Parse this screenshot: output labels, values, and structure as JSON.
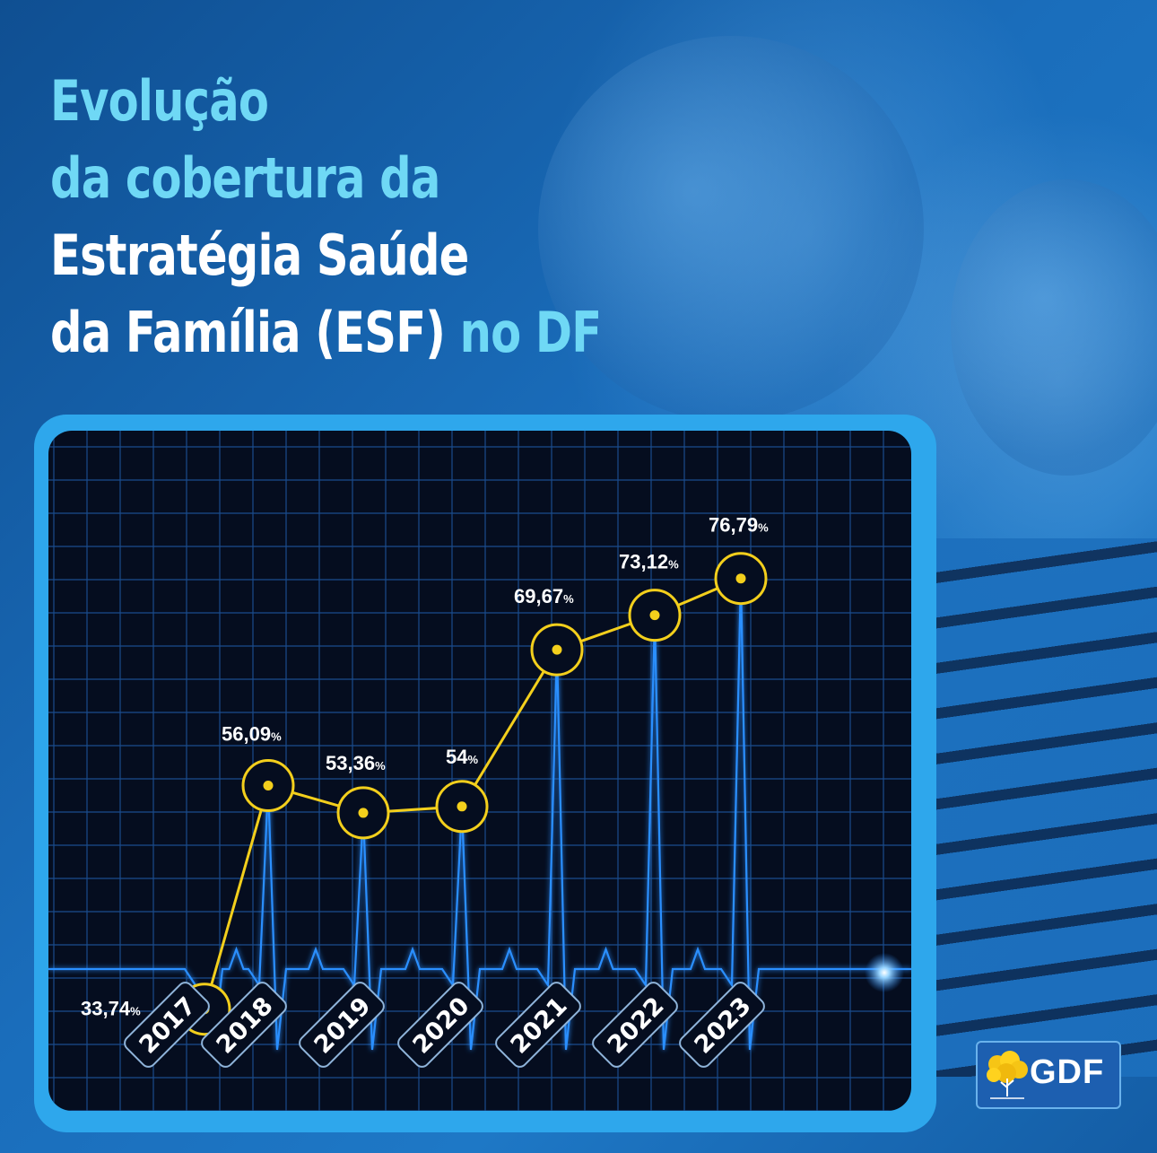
{
  "title": {
    "line1": "Evolução",
    "line2": "da cobertura da",
    "line3": "Estratégia Saúde",
    "line4a": "da Família (ESF)",
    "line4b": "no DF"
  },
  "logo": {
    "text": "GDF",
    "icon": "ipe-tree-icon"
  },
  "colors": {
    "line": "#f3cf1c",
    "grid": "#1a4c8d",
    "panel": "#050d1f",
    "frame": "#2ea7ec",
    "ekg": "#2a8fff"
  },
  "chart_data": {
    "type": "line",
    "title": "Evolução da cobertura da Estratégia Saúde da Família (ESF) no DF",
    "categories": [
      "2017",
      "2018",
      "2019",
      "2020",
      "2021",
      "2022",
      "2023"
    ],
    "values": [
      33.74,
      56.09,
      53.36,
      54,
      69.67,
      73.12,
      76.79
    ],
    "value_labels": [
      "33,74",
      "56,09",
      "53,36",
      "54",
      "69,67",
      "73,12",
      "76,79"
    ],
    "unit": "%",
    "xlabel": "",
    "ylabel": "",
    "grid": true,
    "legend": "none"
  }
}
